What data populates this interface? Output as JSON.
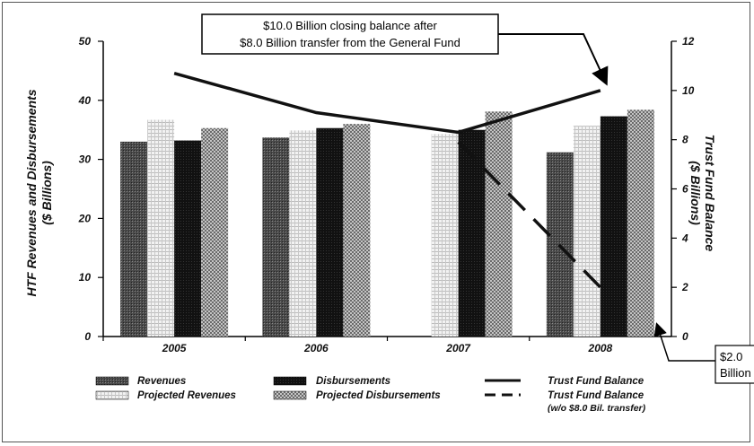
{
  "colors": {
    "revenues": "#3a3a3a",
    "disbursements": "#0d0d0d",
    "projected_revenues": "#e4e4e4",
    "projected_disbursements": "#9a9a9a",
    "balance_line": "#111111"
  },
  "chart_data": {
    "type": "bar",
    "categories": [
      "2005",
      "2006",
      "2007",
      "2008"
    ],
    "ylabel": "HTF Revenues and Disbursements ($ Billions)",
    "ylabel_line1": "HTF Revenues and Disbursements",
    "ylabel_line2": "($ Billions)",
    "y2label": "Trust Fund Balance ($ Billions)",
    "y2label_line1": "Trust Fund Balance",
    "y2label_line2": "($ Billions)",
    "ylim": [
      0,
      50
    ],
    "y2lim": [
      0,
      12
    ],
    "yticks": [
      0,
      10,
      20,
      30,
      40,
      50
    ],
    "y2ticks": [
      0,
      2,
      4,
      6,
      8,
      10,
      12
    ],
    "grid": false,
    "legend_position": "bottom",
    "series": [
      {
        "name": "Revenues",
        "kind": "bar",
        "axis": "left",
        "values": [
          33.0,
          33.7,
          null,
          31.2
        ]
      },
      {
        "name": "Projected Revenues",
        "kind": "bar",
        "axis": "left",
        "values": [
          36.7,
          34.9,
          34.3,
          35.7
        ]
      },
      {
        "name": "Disbursements",
        "kind": "bar",
        "axis": "left",
        "values": [
          33.2,
          35.3,
          35.0,
          37.3
        ]
      },
      {
        "name": "Projected Disbursements",
        "kind": "bar",
        "axis": "left",
        "values": [
          35.3,
          36.0,
          38.1,
          38.4
        ]
      },
      {
        "name": "Trust Fund Balance",
        "kind": "line",
        "axis": "right",
        "x": [
          2005,
          2006,
          2007,
          2008
        ],
        "values": [
          10.7,
          9.1,
          8.3,
          10.0
        ]
      },
      {
        "name": "Trust Fund Balance (w/o $8.0 Bil. transfer)",
        "kind": "dashed-line",
        "axis": "right",
        "x": [
          2007,
          2008
        ],
        "values": [
          7.9,
          2.0
        ]
      }
    ],
    "legend": [
      {
        "label": "Revenues",
        "swatch": "revenues"
      },
      {
        "label": "Projected Revenues",
        "swatch": "projected_revenues"
      },
      {
        "label": "Disbursements",
        "swatch": "disbursements"
      },
      {
        "label": "Projected Disbursements",
        "swatch": "projected_disbursements"
      },
      {
        "label": "Trust Fund Balance",
        "swatch": "solid-line"
      },
      {
        "label": "Trust Fund Balance",
        "sublabel": "(w/o $8.0 Bil. transfer)",
        "swatch": "dashed-line"
      }
    ],
    "annotations": {
      "top_callout_line1": "$10.0 Billion closing balance after",
      "top_callout_line2": "$8.0 Billion transfer from the General Fund",
      "bottom_callout_line1": "$2.0",
      "bottom_callout_line2": "Billion"
    }
  }
}
